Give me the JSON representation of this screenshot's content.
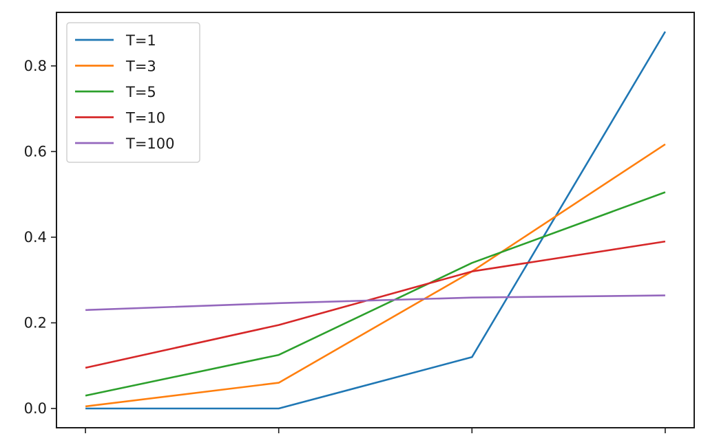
{
  "chart_data": {
    "type": "line",
    "title": "",
    "xlabel": "",
    "ylabel": "",
    "x": [
      0,
      1,
      2,
      3
    ],
    "xtick_labels": [
      "",
      "",
      "",
      ""
    ],
    "yticks": [
      "0.0",
      "0.2",
      "0.4",
      "0.6",
      "0.8"
    ],
    "ytick_values": [
      0.0,
      0.2,
      0.4,
      0.6,
      0.8
    ],
    "ylim": [
      -0.045,
      0.925
    ],
    "xlim": [
      -0.15,
      3.15
    ],
    "grid": false,
    "legend": "top-left",
    "series": [
      {
        "name": "T=1",
        "color": "#1f77b4",
        "values": [
          0.0,
          0.0,
          0.12,
          0.88
        ]
      },
      {
        "name": "T=3",
        "color": "#ff7f0e",
        "values": [
          0.005,
          0.06,
          0.32,
          0.617
        ]
      },
      {
        "name": "T=5",
        "color": "#2ca02c",
        "values": [
          0.03,
          0.125,
          0.34,
          0.505
        ]
      },
      {
        "name": "T=10",
        "color": "#d62728",
        "values": [
          0.095,
          0.195,
          0.32,
          0.39
        ]
      },
      {
        "name": "T=100",
        "color": "#9467bd",
        "values": [
          0.23,
          0.246,
          0.259,
          0.264
        ]
      }
    ]
  }
}
